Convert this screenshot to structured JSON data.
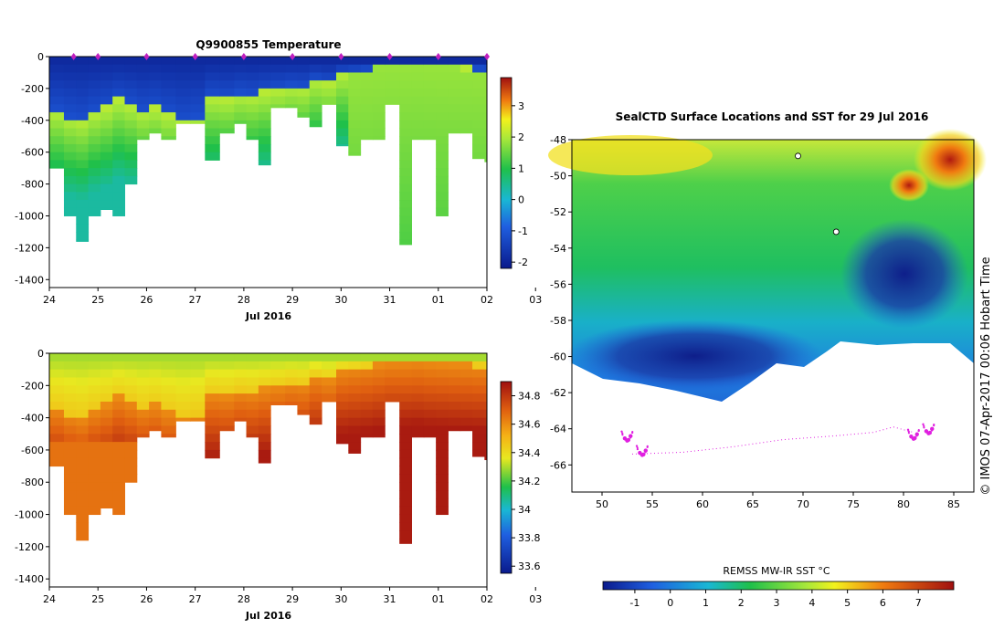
{
  "chart_data": [
    {
      "type": "heatmap",
      "title": "Q9900855  Temperature",
      "xlabel": "Jul 2016",
      "ylabel": "",
      "x_ticks": [
        "24",
        "25",
        "26",
        "27",
        "28",
        "29",
        "30",
        "31",
        "01",
        "02",
        "03"
      ],
      "y_ticks": [
        "0",
        "-200",
        "-400",
        "-600",
        "-800",
        "-1000",
        "-1200",
        "-1400"
      ],
      "ylim": [
        -1450,
        0
      ],
      "xlim": [
        24,
        33
      ],
      "colorbar_ticks": [
        "3",
        "2",
        "1",
        "0",
        "-1",
        "-2"
      ],
      "colorbar_range": [
        -2.2,
        3.9
      ],
      "profile_times": [
        24.0,
        24.3,
        24.55,
        24.8,
        25.05,
        25.3,
        25.55,
        25.8,
        26.05,
        26.3,
        26.6,
        26.9,
        27.2,
        27.5,
        27.8,
        28.05,
        28.3,
        28.55,
        28.85,
        29.1,
        29.35,
        29.6,
        29.9,
        30.15,
        30.4,
        30.65,
        30.9,
        31.2,
        31.45,
        31.7,
        31.95,
        32.2,
        32.45,
        32.7,
        32.95
      ],
      "profile_depths": [
        700,
        1000,
        1160,
        1000,
        960,
        1000,
        800,
        520,
        480,
        520,
        420,
        420,
        650,
        480,
        420,
        520,
        680,
        320,
        320,
        380,
        440,
        300,
        560,
        620,
        520,
        520,
        300,
        1180,
        520,
        520,
        1000,
        480,
        480,
        640,
        660
      ],
      "transition_depth": [
        320,
        360,
        380,
        330,
        300,
        250,
        280,
        320,
        300,
        340,
        380,
        360,
        230,
        240,
        210,
        220,
        200,
        180,
        160,
        170,
        120,
        140,
        80,
        70,
        60,
        45,
        30,
        30,
        25,
        35,
        40,
        45,
        50,
        55,
        60
      ],
      "markers": [
        24.5,
        25.0,
        26.0,
        27.0,
        28.0,
        29.0,
        30.0,
        31.0,
        32.0,
        33.0
      ]
    },
    {
      "type": "heatmap",
      "title": "",
      "xlabel": "Jul 2016",
      "ylabel": "",
      "x_ticks": [
        "24",
        "25",
        "26",
        "27",
        "28",
        "29",
        "30",
        "31",
        "01",
        "02",
        "03"
      ],
      "y_ticks": [
        "0",
        "-200",
        "-400",
        "-600",
        "-800",
        "-1000",
        "-1200",
        "-1400"
      ],
      "ylim": [
        -1450,
        0
      ],
      "xlim": [
        24,
        33
      ],
      "colorbar_ticks": [
        "34.8",
        "34.6",
        "34.4",
        "34.2",
        "34",
        "33.8",
        "33.6"
      ],
      "colorbar_range": [
        33.55,
        34.9
      ]
    },
    {
      "type": "heatmap",
      "title": "SealCTD Surface Locations and SST for 29 Jul 2016",
      "xlabel": "",
      "ylabel": "",
      "x_ticks": [
        "50",
        "55",
        "60",
        "65",
        "70",
        "75",
        "80",
        "85"
      ],
      "y_ticks": [
        "-48",
        "-50",
        "-52",
        "-54",
        "-56",
        "-58",
        "-60",
        "-62",
        "-64",
        "-66"
      ],
      "xlim": [
        47,
        87
      ],
      "ylim": [
        -67.5,
        -48
      ],
      "colorbar_label": "REMSS MW-IR SST °C",
      "colorbar_ticks": [
        "-1",
        "0",
        "1",
        "2",
        "3",
        "4",
        "5",
        "6",
        "7"
      ],
      "colorbar_range": [
        -1.9,
        8
      ],
      "seal_clusters": [
        {
          "lon": 52.5,
          "lat": -64.4
        },
        {
          "lon": 54.0,
          "lat": -65.2
        },
        {
          "lon": 81.0,
          "lat": -64.3
        },
        {
          "lon": 82.5,
          "lat": -64.0
        }
      ],
      "track": [
        [
          53,
          -65.4
        ],
        [
          58,
          -65.3
        ],
        [
          63,
          -65.0
        ],
        [
          68,
          -64.6
        ],
        [
          73,
          -64.4
        ],
        [
          77,
          -64.2
        ],
        [
          79,
          -63.9
        ],
        [
          81,
          -64.2
        ]
      ],
      "surface_markers": [
        [
          69.5,
          -48.9
        ],
        [
          73.3,
          -53.1
        ]
      ]
    }
  ],
  "credit": "© IMOS 07-Apr-2017 00:06 Hobart Time"
}
